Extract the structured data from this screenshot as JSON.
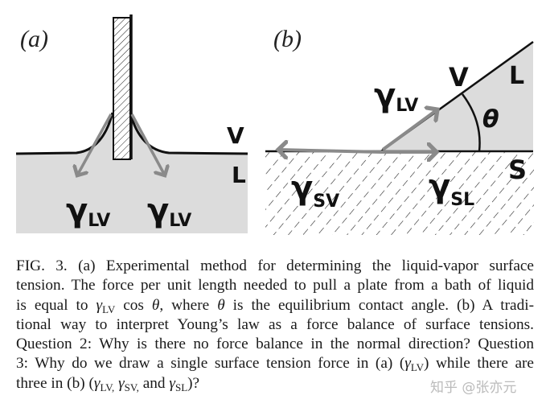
{
  "figure": {
    "panel_a": {
      "label": "(a)",
      "gamma_left": "γ",
      "gamma_left_sub": "LV",
      "gamma_right": "γ",
      "gamma_right_sub": "LV",
      "phase_upper": "V",
      "phase_lower": "L"
    },
    "panel_b": {
      "label": "(b)",
      "gamma_lv": "γ",
      "gamma_lv_sub": "LV",
      "gamma_sv": "γ",
      "gamma_sv_sub": "SV",
      "gamma_sl": "γ",
      "gamma_sl_sub": "SL",
      "phase_v": "V",
      "phase_l": "L",
      "phase_s": "S",
      "angle": "θ"
    },
    "colors": {
      "liquid": "#dcdcdc",
      "arrow": "#8a8a8a",
      "line": "#111111"
    }
  },
  "caption": {
    "lines": [
      [
        {
          "t": "FIG. 3. (a) Experimental method for determining the liquid-vapor surface"
        }
      ],
      [
        {
          "t": "tension. The force per unit length needed to pull a plate from a bath of liquid"
        }
      ],
      [
        {
          "t": "is equal to "
        },
        {
          "m": "γ",
          "sub": "LV"
        },
        {
          "t": " cos "
        },
        {
          "m": "θ"
        },
        {
          "t": ", where "
        },
        {
          "m": "θ"
        },
        {
          "t": " is the equilibrium contact angle. (b) A tradi-"
        }
      ],
      [
        {
          "t": "tional way to interpret Young’s law as a force balance of surface tensions."
        }
      ],
      [
        {
          "t": "Question 2: Why is there no force balance in the normal direction? Question"
        }
      ],
      [
        {
          "t": "3: Why do we draw a single surface tension force in (a) ("
        },
        {
          "m": "γ",
          "sub": "LV"
        },
        {
          "t": ") while there are"
        }
      ],
      [
        {
          "t": "three in (b) ("
        },
        {
          "m": "γ",
          "sub": "LV,"
        },
        {
          "t": " "
        },
        {
          "m": "γ",
          "sub": "SV,"
        },
        {
          "t": " and "
        },
        {
          "m": "γ",
          "sub": "SL"
        },
        {
          "t": ")?"
        }
      ]
    ]
  },
  "watermark": "知乎 @张亦元"
}
